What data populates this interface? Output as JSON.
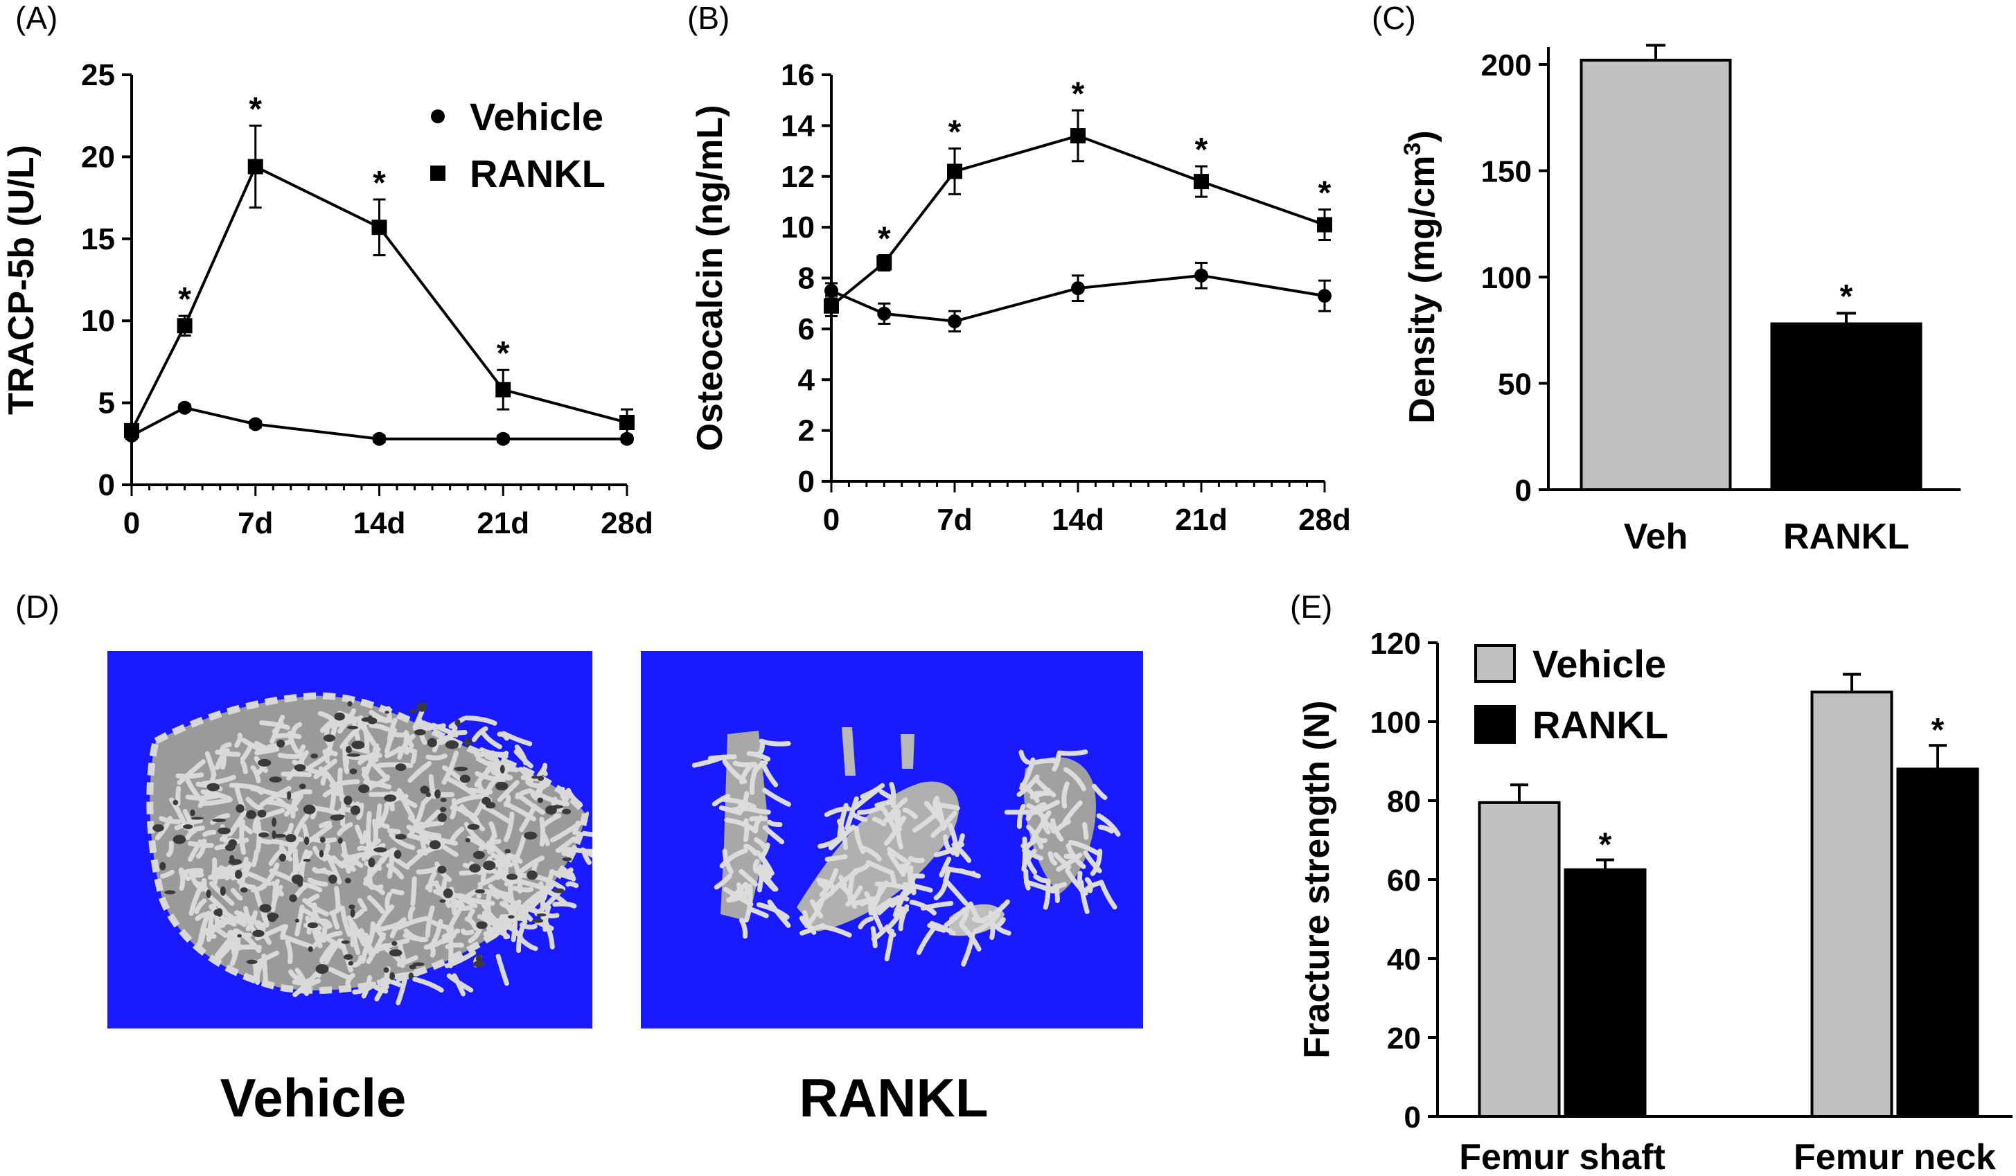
{
  "panels": {
    "a": "(A)",
    "b": "(B)",
    "c": "(C)",
    "d": "(D)",
    "e": "(E)"
  },
  "colors": {
    "vehicle_bar": "#c0c0c0",
    "rankl_bar": "#000000",
    "scan_bg": "#1a1aff",
    "bone": "#b8b8b8"
  },
  "panel_d": {
    "left_caption": "Vehicle",
    "right_caption": "RANKL"
  },
  "chart_data": [
    {
      "id": "A",
      "type": "line",
      "title": "",
      "xlabel": "",
      "ylabel": "TRACP-5b (U/L)",
      "ylim": [
        0,
        25
      ],
      "yticks": [
        "0",
        "5",
        "10",
        "15",
        "20",
        "25"
      ],
      "xticks": [
        "0",
        "7d",
        "14d",
        "21d",
        "28d"
      ],
      "xlim": [
        0,
        28
      ],
      "legend_position": "top-right",
      "series": [
        {
          "name": "Vehicle",
          "marker": "circle",
          "x": [
            0,
            3,
            7,
            14,
            21,
            28
          ],
          "values": [
            3.0,
            4.7,
            3.7,
            2.8,
            2.8,
            2.8
          ],
          "errors": [
            0.2,
            0.2,
            0.2,
            0.2,
            0.2,
            0.2
          ]
        },
        {
          "name": "RANKL",
          "marker": "square",
          "x": [
            0,
            3,
            7,
            14,
            21,
            28
          ],
          "values": [
            3.3,
            9.7,
            19.4,
            15.7,
            5.8,
            3.8
          ],
          "errors": [
            0.3,
            0.6,
            2.5,
            1.7,
            1.2,
            0.8
          ],
          "significant": [
            false,
            true,
            true,
            true,
            true,
            false
          ]
        }
      ],
      "annotation": "*"
    },
    {
      "id": "B",
      "type": "line",
      "title": "",
      "xlabel": "",
      "ylabel": "Osteocalcin (ng/mL)",
      "ylim": [
        0,
        16
      ],
      "yticks": [
        "0",
        "2",
        "4",
        "6",
        "8",
        "10",
        "12",
        "14",
        "16"
      ],
      "xticks": [
        "0",
        "7d",
        "14d",
        "21d",
        "28d"
      ],
      "xlim": [
        0,
        28
      ],
      "series": [
        {
          "name": "Vehicle",
          "marker": "circle",
          "x": [
            0,
            3,
            7,
            14,
            21,
            28
          ],
          "values": [
            7.5,
            6.6,
            6.3,
            7.6,
            8.1,
            7.3
          ],
          "errors": [
            0.3,
            0.4,
            0.4,
            0.5,
            0.5,
            0.6
          ]
        },
        {
          "name": "RANKL",
          "marker": "square",
          "x": [
            0,
            3,
            7,
            14,
            21,
            28
          ],
          "values": [
            6.9,
            8.6,
            12.2,
            13.6,
            11.8,
            10.1
          ],
          "errors": [
            0.4,
            0.3,
            0.9,
            1.0,
            0.6,
            0.6
          ],
          "significant": [
            false,
            true,
            true,
            true,
            true,
            true
          ]
        }
      ],
      "annotation": "*"
    },
    {
      "id": "C",
      "type": "bar",
      "title": "",
      "xlabel": "",
      "ylabel": "Density (mg/cm",
      "ylabel_sup": "3",
      "ylabel_close": ")",
      "ylim": [
        0,
        200
      ],
      "yticks": [
        "0",
        "50",
        "100",
        "150",
        "200"
      ],
      "categories": [
        "Veh",
        "RANKL"
      ],
      "values": [
        202,
        78
      ],
      "errors": [
        7,
        5
      ],
      "significant": [
        false,
        true
      ],
      "annotation": "*"
    },
    {
      "id": "E",
      "type": "bar",
      "title": "",
      "xlabel": "",
      "ylabel": "Fracture strength (N)",
      "ylim": [
        0,
        120
      ],
      "yticks": [
        "0",
        "20",
        "40",
        "60",
        "80",
        "100",
        "120"
      ],
      "categories": [
        "Femur shaft",
        "Femur neck"
      ],
      "legend_position": "top-left",
      "series": [
        {
          "name": "Vehicle",
          "values": [
            79.5,
            107.5
          ],
          "errors": [
            4.5,
            4.5
          ],
          "significant": [
            false,
            false
          ]
        },
        {
          "name": "RANKL",
          "values": [
            62.5,
            88.0
          ],
          "errors": [
            2.5,
            6.0
          ],
          "significant": [
            true,
            true
          ]
        }
      ],
      "annotation": "*"
    }
  ]
}
